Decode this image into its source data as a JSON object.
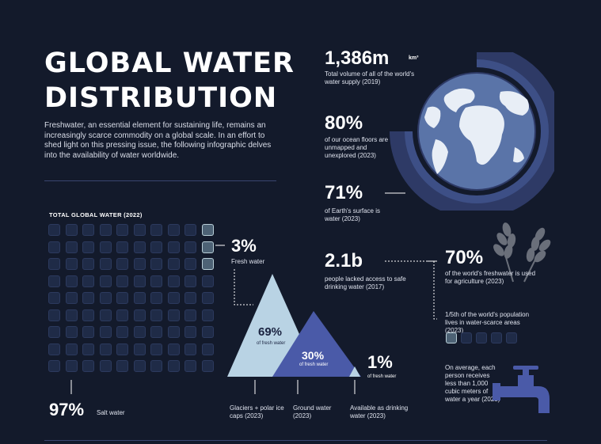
{
  "title": {
    "line1": "GLOBAL WATER",
    "line2": "DISTRIBUTION"
  },
  "intro": "Freshwater, an essential element for sustaining life, remains an increasingly scarce commodity on a global scale. In an effort to shed light on this pressing issue, the following infographic delves into the availability of water worldwide.",
  "grid": {
    "label": "TOTAL GLOBAL WATER (2022)"
  },
  "fresh_share": {
    "value": "3%",
    "label": "Fresh water"
  },
  "salt_share": {
    "value": "97%",
    "label": "Salt water"
  },
  "triangles": {
    "glaciers": {
      "value": "69%",
      "sub": "of fresh water",
      "caption": "Glaciers + polar ice caps (2023)"
    },
    "ground": {
      "value": "30%",
      "sub": "of fresh water",
      "caption": "Ground water (2023)"
    },
    "drinking": {
      "value": "1%",
      "sub": "of fresh water",
      "caption": "Available as drinking water (2023)"
    }
  },
  "stats": {
    "volume": {
      "value": "1,386m",
      "unit": "km³",
      "caption": "Total volume of all of the world's water supply (2019)"
    },
    "ocean": {
      "value": "80%",
      "caption": "of our ocean floors are unmapped and unexplored (2023)"
    },
    "surface": {
      "value": "71%",
      "caption": "of Earth's surface is water (2023)"
    },
    "access": {
      "value": "2.1b",
      "caption": "people lacked access to safe drinking water (2017)"
    },
    "agriculture": {
      "value": "70%",
      "caption": "of the world's freshwater is used for agriculture (2023)"
    },
    "scarce": {
      "caption": "1/5th of the world's population lives in water-scarce areas (2023)"
    },
    "per_person": {
      "caption": "On average, each person receives less than 1,000 cubic meters of water a year (2023)"
    }
  },
  "colors": {
    "background": "#131a2b",
    "accent": "#4a5aa8",
    "light": "#b9d3e4"
  },
  "icons": [
    "globe-icon",
    "wheat-icon",
    "faucet-icon"
  ]
}
